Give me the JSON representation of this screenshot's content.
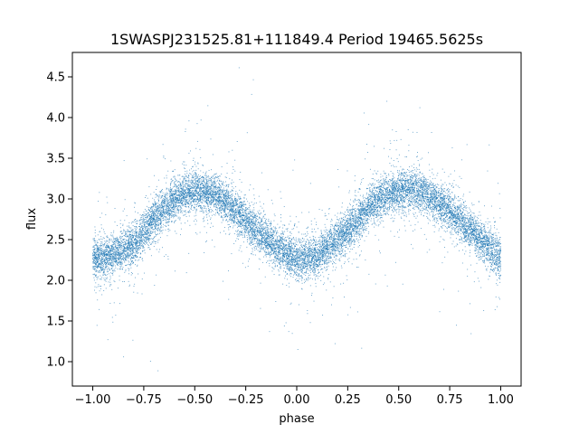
{
  "chart_data": {
    "type": "scatter",
    "title": "1SWASPJ231525.81+111849.4 Period 19465.5625s",
    "xlabel": "phase",
    "ylabel": "flux",
    "xlim": [
      -1.1,
      1.1
    ],
    "ylim": [
      0.7,
      4.8
    ],
    "x_ticks": [
      -1.0,
      -0.75,
      -0.5,
      -0.25,
      0.0,
      0.25,
      0.5,
      0.75,
      1.0
    ],
    "x_tick_labels": [
      "−1.00",
      "−0.75",
      "−0.50",
      "−0.25",
      "0.00",
      "0.25",
      "0.50",
      "0.75",
      "1.00"
    ],
    "y_ticks": [
      1.0,
      1.5,
      2.0,
      2.5,
      3.0,
      3.5,
      4.0,
      4.5
    ],
    "y_tick_labels": [
      "1.0",
      "1.5",
      "2.0",
      "2.5",
      "3.0",
      "3.5",
      "4.0",
      "4.5"
    ],
    "grid": false,
    "point_color": "#1f77b4",
    "series": [
      {
        "x": [
          -1.0,
          -0.9,
          -0.8,
          -0.7,
          -0.6,
          -0.5,
          -0.4,
          -0.3,
          -0.2,
          -0.1,
          0.0,
          0.1,
          0.2,
          0.3,
          0.4,
          0.5,
          0.6,
          0.7,
          0.8,
          0.9,
          1.0
        ],
        "y": [
          2.25,
          2.3,
          2.45,
          2.75,
          3.0,
          3.1,
          3.05,
          2.85,
          2.6,
          2.4,
          2.25,
          2.3,
          2.5,
          2.75,
          3.0,
          3.1,
          3.1,
          2.95,
          2.75,
          2.5,
          2.25
        ]
      }
    ]
  }
}
